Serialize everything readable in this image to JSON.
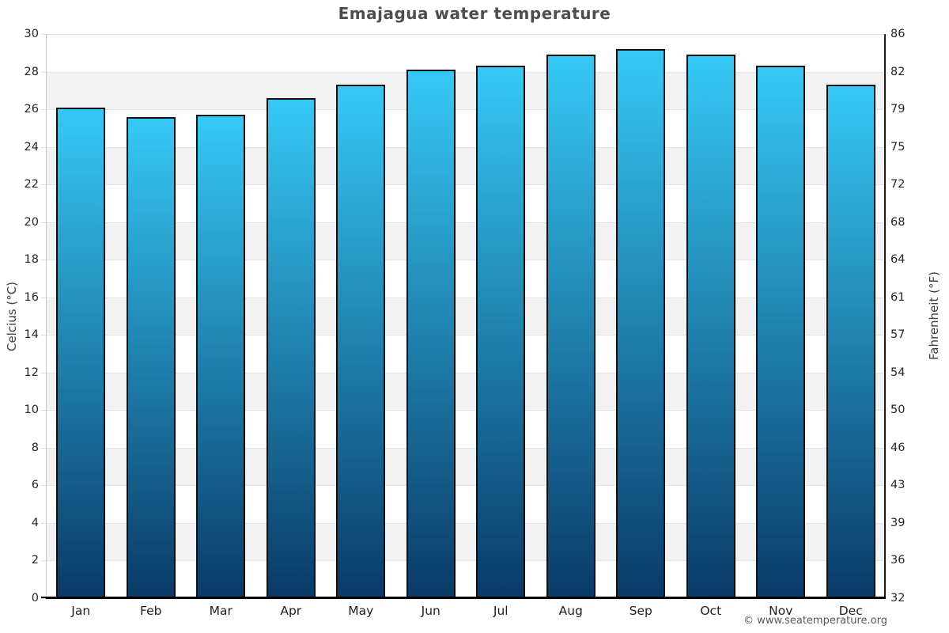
{
  "page": {
    "footer": "© www.seatemperature.org"
  },
  "chart_data": {
    "type": "bar",
    "title": "Emajagua water temperature",
    "xlabel": "",
    "ylabel_left": "Celcius (°C)",
    "ylabel_right": "Fahrenheit (°F)",
    "categories": [
      "Jan",
      "Feb",
      "Mar",
      "Apr",
      "May",
      "Jun",
      "Jul",
      "Aug",
      "Sep",
      "Oct",
      "Nov",
      "Dec"
    ],
    "values": [
      26.1,
      25.6,
      25.7,
      26.6,
      27.3,
      28.1,
      28.3,
      28.9,
      29.2,
      28.9,
      28.3,
      27.3
    ],
    "value_unit": "°C",
    "ylim": [
      0,
      30
    ],
    "ytick_step": 2,
    "yticks_celsius": [
      0,
      2,
      4,
      6,
      8,
      10,
      12,
      14,
      16,
      18,
      20,
      22,
      24,
      26,
      28,
      30
    ],
    "yticks_fahrenheit": [
      "32",
      "36",
      "39",
      "43",
      "46",
      "50",
      "54",
      "57",
      "61",
      "64",
      "68",
      "72",
      "75",
      "79",
      "82",
      "86"
    ],
    "legend_position": "none",
    "grid": "alternating horizontal bands every 2°C with light gridlines",
    "colors": {
      "bar_gradient_top": "#36c9f6",
      "bar_gradient_bottom": "#093a68",
      "bar_border": "#101010",
      "band_gray": "#f2f2f2",
      "gridline": "#e3e3e3",
      "axis_left_line": "#c9c9c9",
      "axis_right_line": "#1c1c1c",
      "axis_bottom_line": "#000000",
      "title_text": "#4d4d4d",
      "tick_text": "#262626",
      "axis_label_text": "#3d3d3d",
      "footer_text": "#5a5a5a"
    }
  }
}
